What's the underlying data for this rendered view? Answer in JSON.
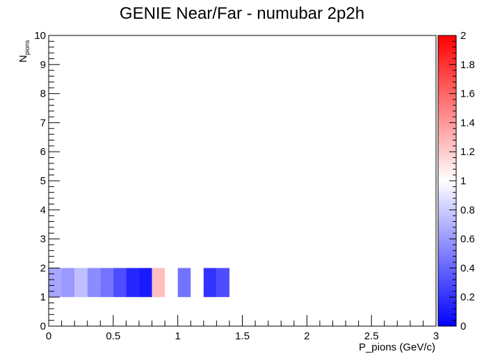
{
  "chart_data": {
    "type": "heatmap",
    "title": "GENIE Near/Far - numubar 2p2h",
    "xlabel": "P_pions (GeV/c)",
    "ylabel_main": "N",
    "ylabel_sub": "pions",
    "xlim": [
      0,
      3
    ],
    "ylim": [
      0,
      10
    ],
    "x_ticks": [
      {
        "value": 0,
        "label": "0"
      },
      {
        "value": 0.5,
        "label": "0.5"
      },
      {
        "value": 1,
        "label": "1"
      },
      {
        "value": 1.5,
        "label": "1.5"
      },
      {
        "value": 2,
        "label": "2"
      },
      {
        "value": 2.5,
        "label": "2.5"
      },
      {
        "value": 3,
        "label": "3"
      }
    ],
    "y_ticks": [
      {
        "value": 0,
        "label": "0"
      },
      {
        "value": 1,
        "label": "1"
      },
      {
        "value": 2,
        "label": "2"
      },
      {
        "value": 3,
        "label": "3"
      },
      {
        "value": 4,
        "label": "4"
      },
      {
        "value": 5,
        "label": "5"
      },
      {
        "value": 6,
        "label": "6"
      },
      {
        "value": 7,
        "label": "7"
      },
      {
        "value": 8,
        "label": "8"
      },
      {
        "value": 9,
        "label": "9"
      },
      {
        "value": 10,
        "label": "10"
      }
    ],
    "bin_width_x": 0.1,
    "bin_height_y": 1,
    "cells": [
      {
        "x": 0.0,
        "y": 1,
        "value": 0.65
      },
      {
        "x": 0.1,
        "y": 1,
        "value": 0.6
      },
      {
        "x": 0.2,
        "y": 1,
        "value": 0.75
      },
      {
        "x": 0.3,
        "y": 1,
        "value": 0.55
      },
      {
        "x": 0.4,
        "y": 1,
        "value": 0.45
      },
      {
        "x": 0.5,
        "y": 1,
        "value": 0.3
      },
      {
        "x": 0.6,
        "y": 1,
        "value": 0.15
      },
      {
        "x": 0.7,
        "y": 1,
        "value": 0.1
      },
      {
        "x": 0.8,
        "y": 1,
        "value": 1.25
      },
      {
        "x": 0.9,
        "y": 1,
        "value": 1.0
      },
      {
        "x": 1.0,
        "y": 1,
        "value": 0.45
      },
      {
        "x": 1.2,
        "y": 1,
        "value": 0.2
      },
      {
        "x": 1.3,
        "y": 1,
        "value": 0.3
      }
    ],
    "colorbar": {
      "min": 0,
      "max": 2,
      "colors": [
        "#0000ff",
        "#ffffff",
        "#ff0000"
      ],
      "ticks": [
        {
          "value": 0,
          "label": "0"
        },
        {
          "value": 0.2,
          "label": "0.2"
        },
        {
          "value": 0.4,
          "label": "0.4"
        },
        {
          "value": 0.6,
          "label": "0.6"
        },
        {
          "value": 0.8,
          "label": "0.8"
        },
        {
          "value": 1,
          "label": "1"
        },
        {
          "value": 1.2,
          "label": "1.2"
        },
        {
          "value": 1.4,
          "label": "1.4"
        },
        {
          "value": 1.6,
          "label": "1.6"
        },
        {
          "value": 1.8,
          "label": "1.8"
        },
        {
          "value": 2,
          "label": "2"
        }
      ]
    }
  }
}
